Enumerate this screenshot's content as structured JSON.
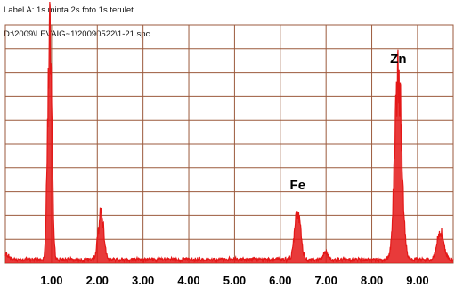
{
  "header": {
    "label_line": "Label A: 1s minta 2s foto 1s terulet",
    "file_path": "D:\\2009\\LEVAIG~1\\20090522\\1-21.spc"
  },
  "chart_data": {
    "type": "line",
    "title": "",
    "xlabel": "",
    "ylabel": "",
    "xlim": [
      0.0,
      9.6
    ],
    "ylim": [
      0,
      100
    ],
    "x_ticks": [
      1.0,
      2.0,
      3.0,
      4.0,
      5.0,
      6.0,
      7.0,
      8.0,
      9.0
    ],
    "x_tick_labels": [
      "1.00",
      "2.00",
      "3.00",
      "4.00",
      "5.00",
      "6.00",
      "7.00",
      "8.00",
      "9.00"
    ],
    "grid": true,
    "colors": {
      "series": "#e41818",
      "grid": "#9b5a3c",
      "background": "#ffffff"
    },
    "baseline": 1.5,
    "peaks": [
      {
        "x": 0.02,
        "height": 2.0,
        "width": 0.05
      },
      {
        "x": 0.96,
        "height": 96.0,
        "width": 0.045
      },
      {
        "x": 2.08,
        "height": 20.0,
        "width": 0.06
      },
      {
        "x": 6.38,
        "height": 20.0,
        "width": 0.065
      },
      {
        "x": 6.99,
        "height": 3.0,
        "width": 0.05
      },
      {
        "x": 8.58,
        "height": 78.0,
        "width": 0.075
      },
      {
        "x": 9.5,
        "height": 12.0,
        "width": 0.07
      }
    ],
    "annotations": [
      {
        "text": "Fe",
        "x": 6.38,
        "y": 31
      },
      {
        "text": "Zn",
        "x": 8.58,
        "y": 84
      }
    ]
  }
}
